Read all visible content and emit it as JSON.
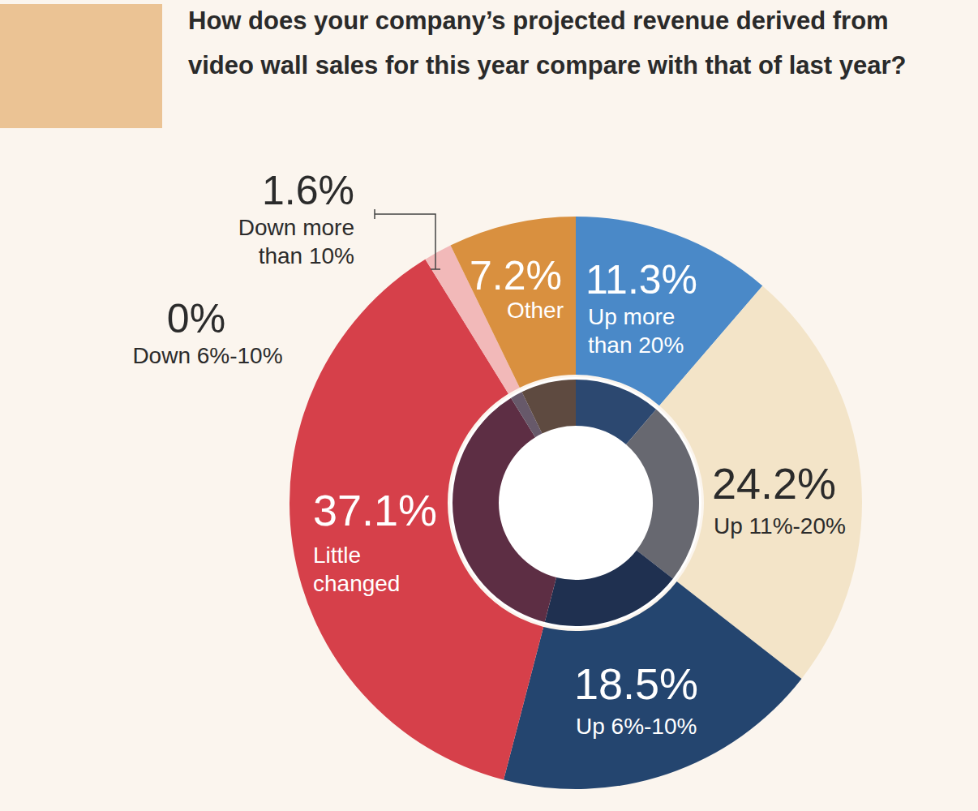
{
  "chart_data": {
    "type": "donut",
    "title": "How does your company’s projected revenue derived from video wall sales for this year compare with that of last year?",
    "categories": [
      "Up more than 20%",
      "Up 11%-20%",
      "Up 6%-10%",
      "Little changed",
      "Down 6%-10%",
      "Down more than 10%",
      "Other"
    ],
    "values": [
      11.3,
      24.2,
      18.5,
      37.1,
      0,
      1.6,
      7.2
    ],
    "value_labels": [
      "11.3%",
      "24.2%",
      "18.5%",
      "37.1%",
      "0%",
      "1.6%",
      "7.2%"
    ],
    "colors": [
      "#4a89c8",
      "#f3e4c8",
      "#24456f",
      "#d6404a",
      "#8a8fa8",
      "#f2b9b9",
      "#d9903f"
    ],
    "data_labels": true
  }
}
